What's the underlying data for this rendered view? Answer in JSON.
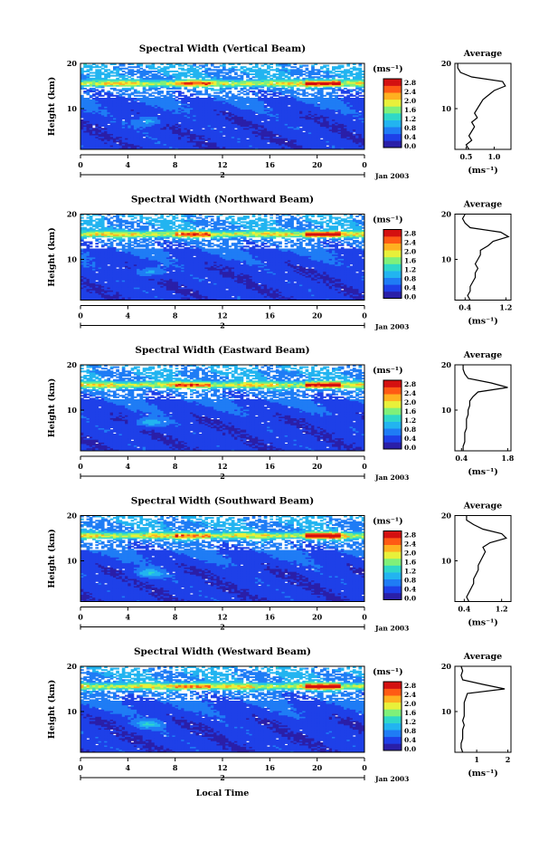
{
  "figure": {
    "x_axis_label": "Local Time",
    "date_label": "Jan 2003",
    "date_bar_label": "2",
    "x_ticks": [
      "0",
      "4",
      "8",
      "12",
      "16",
      "20",
      "0"
    ],
    "y_label": "Height (km)",
    "y_ticks": [
      "20",
      "10"
    ],
    "cbar_unit": "(ms⁻¹)",
    "cbar_ticks": [
      "2.8",
      "2.4",
      "2.0",
      "1.6",
      "1.2",
      "0.8",
      "0.4",
      "0.0"
    ],
    "avg_title": "Average",
    "avg_xlabel": "(ms⁻¹)",
    "colors": {
      "colormap": [
        "#2a1fa8",
        "#1e40e8",
        "#1f7cf5",
        "#22b4f0",
        "#2fd8c8",
        "#7ff07a",
        "#e8f03a",
        "#ffb020",
        "#ff5a14",
        "#d41010"
      ],
      "background": "#ffffff"
    }
  },
  "chart_data": [
    {
      "type": "heatmap",
      "title": "Spectral Width (Vertical Beam)",
      "xlabel": "",
      "ylabel": "Height (km)",
      "xlim": [
        0,
        24
      ],
      "ylim": [
        1,
        20
      ],
      "clim": [
        0.0,
        3.0
      ],
      "x_ticks": [
        0,
        4,
        8,
        12,
        16,
        20,
        24
      ],
      "description_values": "spectral width ~0.3-0.6 below 12 km, enhanced ~1.0-2.6 near 15-16 km",
      "average_profile": {
        "xticks": [
          "0.5",
          "1.0"
        ],
        "xlim": [
          0.3,
          1.3
        ],
        "heights": [
          1,
          2,
          3,
          4,
          5,
          6,
          7,
          8,
          9,
          10,
          11,
          12,
          13,
          14,
          15,
          16,
          17,
          18,
          19,
          20
        ],
        "values": [
          0.55,
          0.5,
          0.6,
          0.55,
          0.6,
          0.65,
          0.6,
          0.7,
          0.65,
          0.7,
          0.75,
          0.8,
          0.9,
          1.0,
          1.2,
          1.15,
          0.6,
          0.4,
          0.35,
          0.35
        ]
      }
    },
    {
      "type": "heatmap",
      "title": "Spectral Width (Northward Beam)",
      "xlabel": "",
      "ylabel": "Height (km)",
      "xlim": [
        0,
        24
      ],
      "ylim": [
        1,
        20
      ],
      "clim": [
        0.0,
        3.0
      ],
      "x_ticks": [
        0,
        4,
        8,
        12,
        16,
        20,
        24
      ],
      "average_profile": {
        "xticks": [
          "0.4",
          "1.2"
        ],
        "xlim": [
          0.2,
          1.3
        ],
        "heights": [
          1,
          2,
          3,
          4,
          5,
          6,
          7,
          8,
          9,
          10,
          11,
          12,
          13,
          14,
          15,
          16,
          17,
          18,
          19,
          20
        ],
        "values": [
          0.5,
          0.45,
          0.5,
          0.5,
          0.55,
          0.6,
          0.6,
          0.65,
          0.6,
          0.65,
          0.7,
          0.7,
          0.85,
          0.95,
          1.25,
          1.1,
          0.5,
          0.4,
          0.35,
          0.4
        ]
      }
    },
    {
      "type": "heatmap",
      "title": "Spectral Width (Eastward Beam)",
      "xlabel": "",
      "ylabel": "Height (km)",
      "xlim": [
        0,
        24
      ],
      "ylim": [
        1,
        20
      ],
      "clim": [
        0.0,
        3.0
      ],
      "x_ticks": [
        0,
        4,
        8,
        12,
        16,
        20,
        24
      ],
      "average_profile": {
        "xticks": [
          "0.4",
          "1.8"
        ],
        "xlim": [
          0.2,
          1.9
        ],
        "heights": [
          1,
          2,
          3,
          4,
          5,
          6,
          7,
          8,
          9,
          10,
          11,
          12,
          13,
          14,
          15,
          16,
          17,
          18,
          19,
          20
        ],
        "values": [
          0.45,
          0.45,
          0.5,
          0.5,
          0.5,
          0.55,
          0.55,
          0.55,
          0.6,
          0.6,
          0.65,
          0.65,
          0.75,
          0.9,
          1.8,
          1.3,
          0.6,
          0.5,
          0.45,
          0.45
        ]
      }
    },
    {
      "type": "heatmap",
      "title": "Spectral Width (Southward Beam)",
      "xlabel": "",
      "ylabel": "Height (km)",
      "xlim": [
        0,
        24
      ],
      "ylim": [
        1,
        20
      ],
      "clim": [
        0.0,
        3.0
      ],
      "x_ticks": [
        0,
        4,
        8,
        12,
        16,
        20,
        24
      ],
      "average_profile": {
        "xticks": [
          "0.4",
          "1.2"
        ],
        "xlim": [
          0.2,
          1.4
        ],
        "heights": [
          1,
          2,
          3,
          4,
          5,
          6,
          7,
          8,
          9,
          10,
          11,
          12,
          13,
          14,
          15,
          16,
          17,
          18,
          19,
          20
        ],
        "values": [
          0.5,
          0.45,
          0.5,
          0.55,
          0.6,
          0.6,
          0.65,
          0.7,
          0.7,
          0.75,
          0.8,
          0.85,
          0.8,
          0.95,
          1.3,
          1.2,
          0.8,
          0.6,
          0.45,
          0.45
        ]
      }
    },
    {
      "type": "heatmap",
      "title": "Spectral Width (Westward Beam)",
      "xlabel": "Local Time",
      "ylabel": "Height (km)",
      "xlim": [
        0,
        24
      ],
      "ylim": [
        1,
        20
      ],
      "clim": [
        0.0,
        3.0
      ],
      "x_ticks": [
        0,
        4,
        8,
        12,
        16,
        20,
        24
      ],
      "average_profile": {
        "xticks": [
          "1",
          "2"
        ],
        "xlim": [
          0.3,
          2.1
        ],
        "heights": [
          1,
          2,
          3,
          4,
          5,
          6,
          7,
          8,
          9,
          10,
          11,
          12,
          13,
          14,
          15,
          16,
          17,
          18,
          19,
          20
        ],
        "values": [
          0.55,
          0.5,
          0.5,
          0.55,
          0.55,
          0.55,
          0.6,
          0.55,
          0.6,
          0.6,
          0.6,
          0.6,
          0.65,
          0.7,
          1.9,
          1.2,
          0.55,
          0.5,
          0.55,
          0.5
        ]
      }
    }
  ]
}
